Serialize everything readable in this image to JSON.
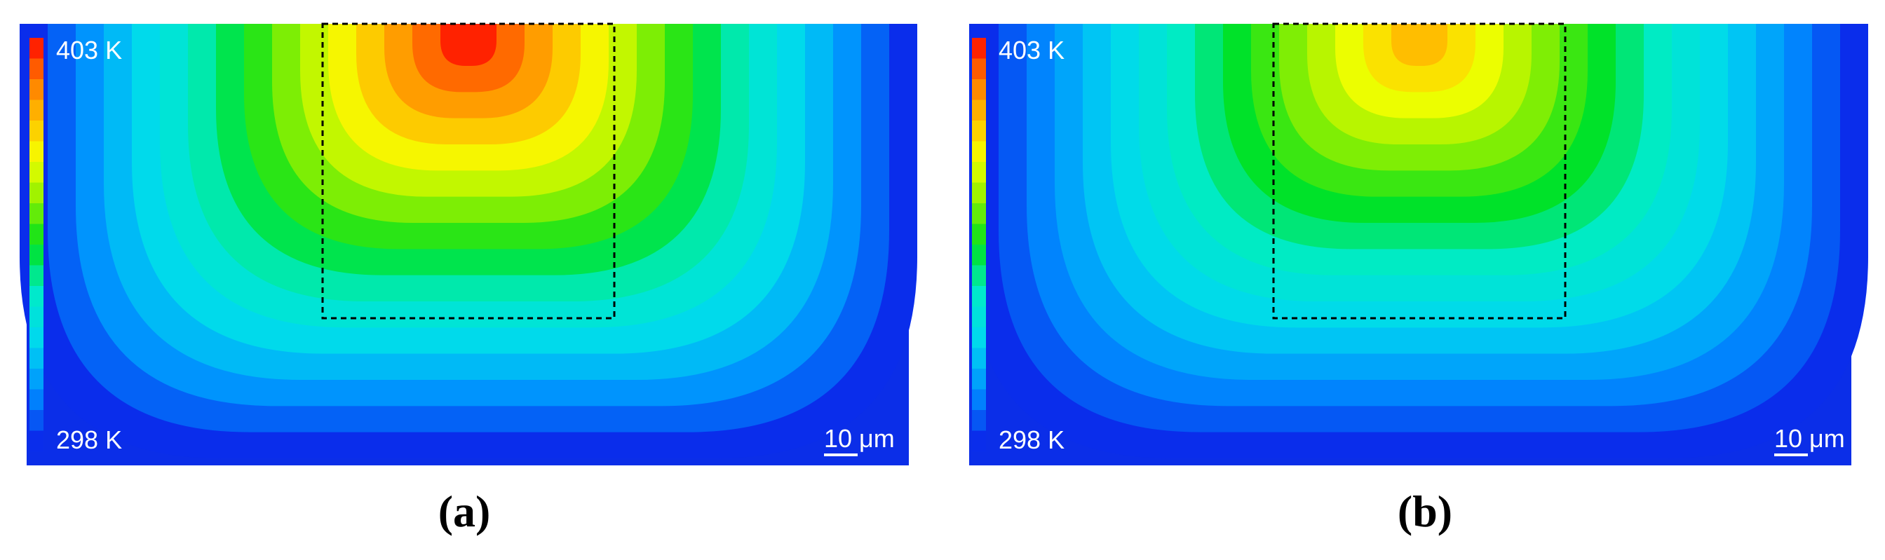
{
  "figure": {
    "colors": {
      "background": "#0b2ee8",
      "max": "#ff2200",
      "hot": "#ff8a00",
      "mid": "#f5ff00",
      "warm": "#00e11a",
      "cool": "#00e7e7",
      "cold": "#0a3df0",
      "outline": "#000000"
    },
    "panels": [
      {
        "id": "a",
        "caption": "(a)",
        "colorbar": {
          "max_label": "403 K",
          "min_label": "298 K"
        },
        "scalebar": {
          "label": "10 μm"
        },
        "peak_temperature_fraction": 1.0
      },
      {
        "id": "b",
        "caption": "(b)",
        "colorbar": {
          "max_label": "403 K",
          "min_label": "298 K"
        },
        "scalebar": {
          "label": "10 μm"
        },
        "peak_temperature_fraction": 0.82
      }
    ]
  }
}
